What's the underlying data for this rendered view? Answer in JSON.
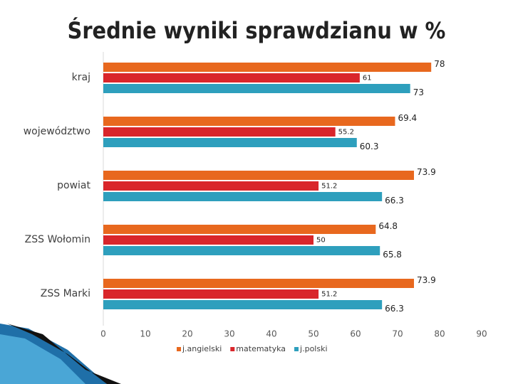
{
  "chart_data": {
    "type": "bar",
    "orientation": "horizontal",
    "title": "Średnie wyniki sprawdzianu w %",
    "categories": [
      "kraj",
      "województwo",
      "powiat",
      "ZSS Wołomin",
      "ZSS Marki"
    ],
    "series": [
      {
        "name": "j.angielski",
        "color": "#e8681e",
        "values": [
          78,
          69.4,
          73.9,
          64.8,
          73.9
        ]
      },
      {
        "name": "matematyka",
        "color": "#d9262b",
        "values": [
          61,
          55.2,
          51.2,
          50,
          51.2
        ]
      },
      {
        "name": "j.polski",
        "color": "#2e9fbd",
        "values": [
          73,
          60.3,
          66.3,
          65.8,
          66.3
        ]
      }
    ],
    "xlim": [
      0,
      90
    ],
    "xticks": [
      0,
      10,
      20,
      30,
      40,
      50,
      60,
      70,
      80,
      90
    ],
    "grid": false,
    "legend": "bottom"
  }
}
